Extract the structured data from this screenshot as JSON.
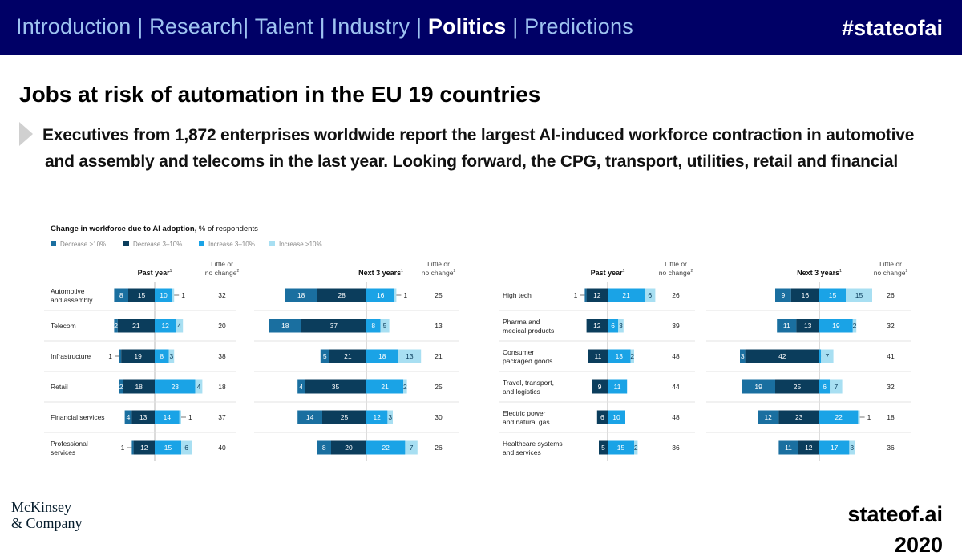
{
  "header": {
    "nav": [
      {
        "label": "Introduction",
        "active": false
      },
      {
        "label": "Research",
        "active": false
      },
      {
        "label": "Talent",
        "active": false
      },
      {
        "label": "Industry",
        "active": false
      },
      {
        "label": "Politics",
        "active": true
      },
      {
        "label": "Predictions",
        "active": false
      }
    ],
    "hashtag": "#stateofai"
  },
  "slide": {
    "title": "Jobs at risk of automation in the EU 19 countries",
    "subtitle_line1": "Executives from 1,872 enterprises worldwide report the largest AI-induced workforce contraction in automotive",
    "subtitle_line2": "and assembly and telecoms in the last year. Looking forward, the CPG, transport, utilities, retail and financial"
  },
  "footer": {
    "logo_line1": "McKinsey",
    "logo_line2": "& Company",
    "site": "stateof.ai",
    "year": "2020"
  },
  "chart_data": {
    "type": "bar",
    "title": "Change in workforce due to AI adoption,",
    "title_suffix": "% of respondents",
    "legend": [
      {
        "label": "Decrease >10%",
        "color": "#1a6fa0"
      },
      {
        "label": "Decrease 3–10%",
        "color": "#0b3d5c"
      },
      {
        "label": "Increase 3–10%",
        "color": "#1aa3e6"
      },
      {
        "label": "Increase >10%",
        "color": "#a8dff2"
      }
    ],
    "headers": {
      "past": "Past year",
      "next": "Next 3 years",
      "little_line1": "Little or",
      "little_line2": "no change",
      "past_sup": "1",
      "next_sup": "1",
      "little_sup": "2"
    },
    "panels": [
      {
        "rows": [
          {
            "label": [
              "Automotive",
              "and assembly"
            ],
            "past": [
              8,
              15,
              10,
              1
            ],
            "past_nc": 32,
            "next": [
              18,
              28,
              16,
              1
            ],
            "next_nc": 25
          },
          {
            "label": [
              "Telecom"
            ],
            "past": [
              2,
              21,
              12,
              4
            ],
            "past_nc": 20,
            "next": [
              18,
              37,
              8,
              5
            ],
            "next_nc": 13
          },
          {
            "label": [
              "Infrastructure"
            ],
            "past": [
              1,
              19,
              8,
              3
            ],
            "past_nc": 38,
            "next": [
              5,
              21,
              18,
              13
            ],
            "next_nc": 21
          },
          {
            "label": [
              "Retail"
            ],
            "past": [
              2,
              18,
              23,
              4
            ],
            "past_nc": 18,
            "next": [
              4,
              35,
              21,
              2
            ],
            "next_nc": 25
          },
          {
            "label": [
              "Financial services"
            ],
            "past": [
              4,
              13,
              14,
              1
            ],
            "past_nc": 37,
            "next": [
              14,
              25,
              12,
              3
            ],
            "next_nc": 30
          },
          {
            "label": [
              "Professional",
              "services"
            ],
            "past": [
              1,
              12,
              15,
              6
            ],
            "past_nc": 40,
            "next": [
              8,
              20,
              22,
              7
            ],
            "next_nc": 26
          }
        ]
      },
      {
        "rows": [
          {
            "label": [
              "High tech"
            ],
            "past": [
              1,
              12,
              21,
              6
            ],
            "past_nc": 26,
            "next": [
              9,
              16,
              15,
              15
            ],
            "next_nc": 26
          },
          {
            "label": [
              "Pharma and",
              "medical products"
            ],
            "past": [
              0,
              12,
              6,
              3
            ],
            "past_nc": 39,
            "next": [
              11,
              13,
              19,
              2
            ],
            "next_nc": 32
          },
          {
            "label": [
              "Consumer",
              "packaged goods"
            ],
            "past": [
              0,
              11,
              13,
              2
            ],
            "past_nc": 48,
            "next": [
              3,
              42,
              1,
              7
            ],
            "next_nc": 41
          },
          {
            "label": [
              "Travel, transport,",
              "and logistics"
            ],
            "past": [
              0,
              9,
              11,
              0
            ],
            "past_nc": 44,
            "next": [
              19,
              25,
              6,
              7
            ],
            "next_nc": 32
          },
          {
            "label": [
              "Electric power",
              "and natural gas"
            ],
            "past": [
              0,
              6,
              10,
              0
            ],
            "past_nc": 48,
            "next": [
              12,
              23,
              22,
              1
            ],
            "next_nc": 18
          },
          {
            "label": [
              "Healthcare systems",
              "and services"
            ],
            "past": [
              0,
              5,
              15,
              2
            ],
            "past_nc": 36,
            "next": [
              11,
              12,
              17,
              3
            ],
            "next_nc": 36
          }
        ]
      }
    ]
  }
}
